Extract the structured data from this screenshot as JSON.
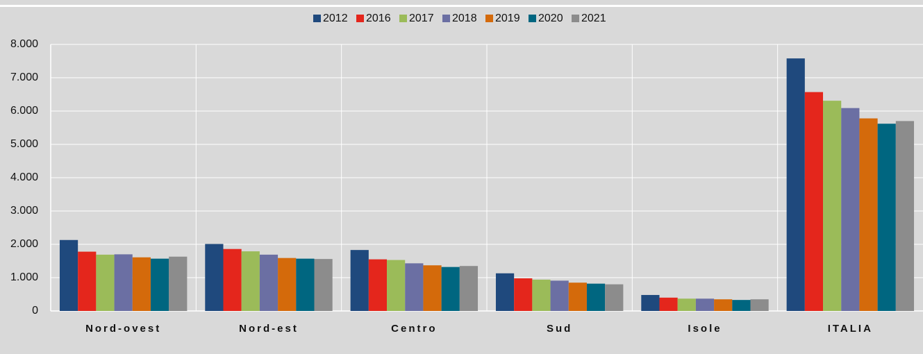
{
  "chart_data": {
    "type": "bar",
    "categories": [
      "Nord-ovest",
      "Nord-est",
      "Centro",
      "Sud",
      "Isole",
      "ITALIA"
    ],
    "series": [
      {
        "name": "2012",
        "color": "#1f497d",
        "values": [
          2130,
          2010,
          1830,
          1130,
          480,
          7580
        ]
      },
      {
        "name": "2016",
        "color": "#e4261c",
        "values": [
          1780,
          1860,
          1550,
          980,
          400,
          6570
        ]
      },
      {
        "name": "2017",
        "color": "#9bbb59",
        "values": [
          1690,
          1790,
          1530,
          940,
          370,
          6310
        ]
      },
      {
        "name": "2018",
        "color": "#6b6fa3",
        "values": [
          1700,
          1690,
          1430,
          910,
          370,
          6090
        ]
      },
      {
        "name": "2019",
        "color": "#d46a0b",
        "values": [
          1610,
          1590,
          1370,
          850,
          350,
          5780
        ]
      },
      {
        "name": "2020",
        "color": "#006680",
        "values": [
          1570,
          1570,
          1320,
          820,
          330,
          5620
        ]
      },
      {
        "name": "2021",
        "color": "#8c8c8c",
        "values": [
          1630,
          1560,
          1350,
          800,
          350,
          5700
        ]
      }
    ],
    "ylim": [
      0,
      8000
    ],
    "yticks": [
      0,
      {
        "value": 1000,
        "label": "1.000"
      },
      {
        "value": 2000,
        "label": "2.000"
      },
      {
        "value": 3000,
        "label": "3.000"
      },
      {
        "value": 4000,
        "label": "4.000"
      },
      {
        "value": 5000,
        "label": "5.000"
      },
      {
        "value": 6000,
        "label": "6.000"
      },
      {
        "value": 7000,
        "label": "7.000"
      },
      {
        "value": 8000,
        "label": "8.000"
      }
    ],
    "grid": true,
    "legend": "top"
  }
}
